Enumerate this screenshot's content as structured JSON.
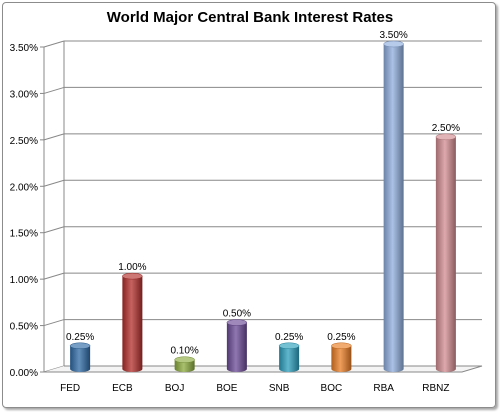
{
  "chart_data": {
    "type": "bar",
    "title": "World Major Central Bank Interest Rates",
    "xlabel": "",
    "ylabel": "",
    "categories": [
      "FED",
      "ECB",
      "BOJ",
      "BOE",
      "SNB",
      "BOC",
      "RBA",
      "RBNZ"
    ],
    "values": [
      0.25,
      1.0,
      0.1,
      0.5,
      0.25,
      0.25,
      3.5,
      2.5
    ],
    "data_labels": [
      "0.25%",
      "1.00%",
      "0.10%",
      "0.50%",
      "0.25%",
      "0.25%",
      "3.50%",
      "2.50%"
    ],
    "y_ticks": [
      "0.00%",
      "0.50%",
      "1.00%",
      "1.50%",
      "2.00%",
      "2.50%",
      "3.00%",
      "3.50%"
    ],
    "ylim": [
      0,
      3.5
    ],
    "grid": true,
    "legend": "none",
    "colors": [
      "#2e6aa6",
      "#b32f2c",
      "#8cab3e",
      "#6b4a97",
      "#2b9fbd",
      "#ea7d24",
      "#8faede",
      "#d38c91"
    ]
  }
}
